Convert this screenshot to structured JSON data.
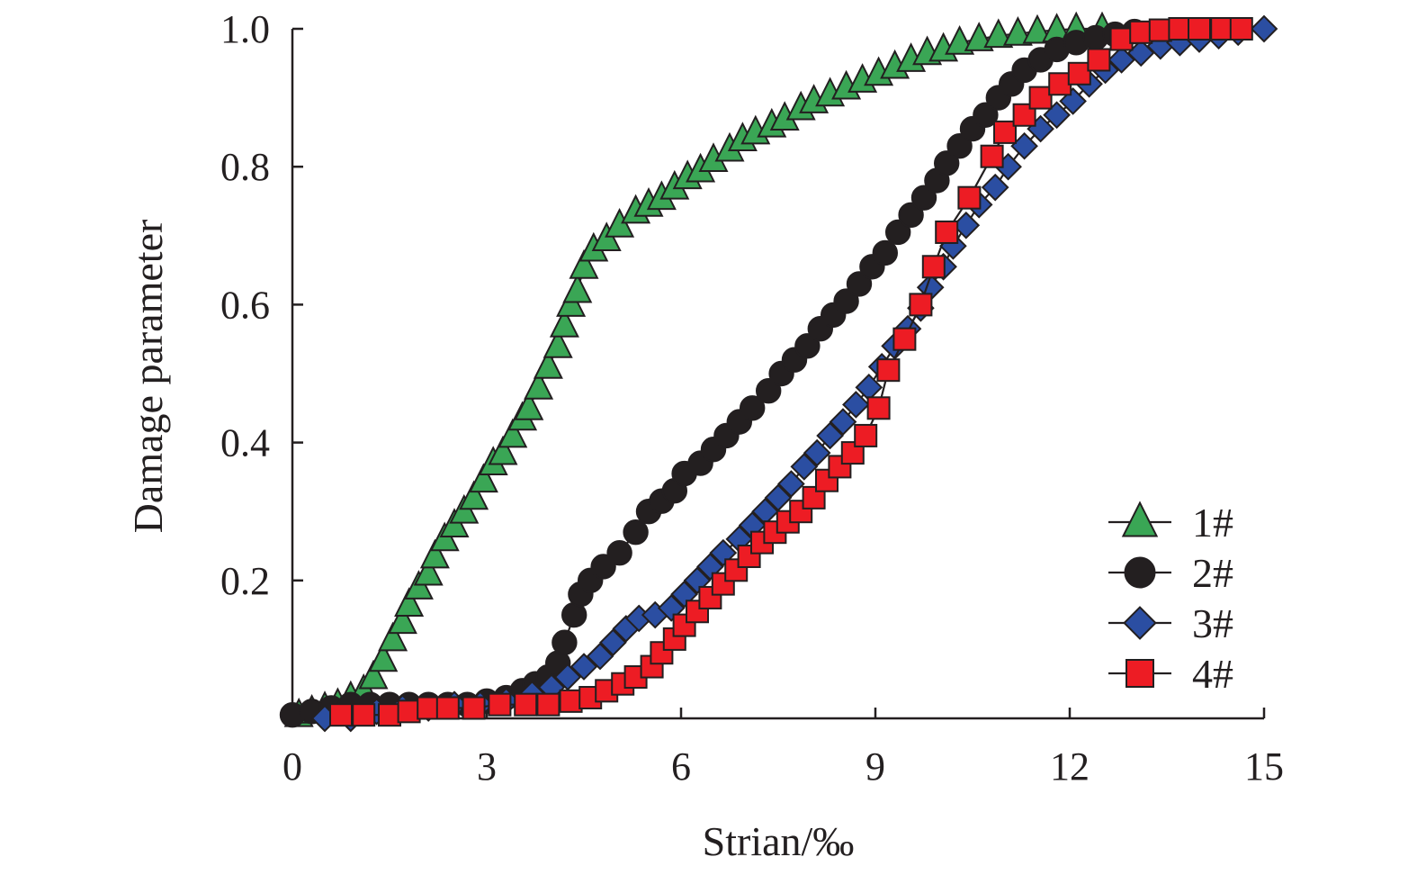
{
  "chart_data": {
    "type": "scatter",
    "title": "",
    "xlabel": "Strian/‰",
    "ylabel": "Damage parameter",
    "xlim": [
      0,
      15
    ],
    "ylim": [
      0,
      1.0
    ],
    "xticks": [
      0,
      3,
      6,
      9,
      12,
      15
    ],
    "xtick_labels": [
      "0",
      "3",
      "6",
      "9",
      "12",
      "15"
    ],
    "yticks": [
      0.2,
      0.4,
      0.6,
      0.8,
      1.0
    ],
    "ytick_labels": [
      "0.2",
      "0.4",
      "0.6",
      "0.8",
      "1.0"
    ],
    "grid": false,
    "legend_position": "bottom-right",
    "series": [
      {
        "name": "1#",
        "marker": "triangle",
        "color": "#3aa655",
        "points": [
          [
            0.1,
            0.005
          ],
          [
            0.3,
            0.01
          ],
          [
            0.5,
            0.015
          ],
          [
            0.7,
            0.02
          ],
          [
            0.9,
            0.03
          ],
          [
            1.1,
            0.04
          ],
          [
            1.25,
            0.06
          ],
          [
            1.4,
            0.085
          ],
          [
            1.55,
            0.115
          ],
          [
            1.7,
            0.14
          ],
          [
            1.8,
            0.165
          ],
          [
            1.95,
            0.19
          ],
          [
            2.1,
            0.21
          ],
          [
            2.2,
            0.235
          ],
          [
            2.35,
            0.26
          ],
          [
            2.5,
            0.28
          ],
          [
            2.65,
            0.3
          ],
          [
            2.8,
            0.32
          ],
          [
            2.95,
            0.345
          ],
          [
            3.1,
            0.37
          ],
          [
            3.25,
            0.385
          ],
          [
            3.4,
            0.41
          ],
          [
            3.55,
            0.435
          ],
          [
            3.65,
            0.45
          ],
          [
            3.8,
            0.48
          ],
          [
            3.95,
            0.51
          ],
          [
            4.1,
            0.54
          ],
          [
            4.2,
            0.57
          ],
          [
            4.3,
            0.6
          ],
          [
            4.4,
            0.62
          ],
          [
            4.5,
            0.655
          ],
          [
            4.65,
            0.68
          ],
          [
            4.85,
            0.695
          ],
          [
            5.05,
            0.715
          ],
          [
            5.3,
            0.735
          ],
          [
            5.5,
            0.745
          ],
          [
            5.7,
            0.755
          ],
          [
            5.9,
            0.77
          ],
          [
            6.1,
            0.785
          ],
          [
            6.3,
            0.795
          ],
          [
            6.5,
            0.81
          ],
          [
            6.75,
            0.825
          ],
          [
            6.95,
            0.84
          ],
          [
            7.15,
            0.85
          ],
          [
            7.4,
            0.86
          ],
          [
            7.6,
            0.87
          ],
          [
            7.85,
            0.885
          ],
          [
            8.05,
            0.895
          ],
          [
            8.3,
            0.905
          ],
          [
            8.55,
            0.915
          ],
          [
            8.8,
            0.925
          ],
          [
            9.05,
            0.935
          ],
          [
            9.3,
            0.945
          ],
          [
            9.55,
            0.955
          ],
          [
            9.8,
            0.965
          ],
          [
            10.05,
            0.97
          ],
          [
            10.3,
            0.98
          ],
          [
            10.6,
            0.985
          ],
          [
            10.9,
            0.99
          ],
          [
            11.2,
            0.993
          ],
          [
            11.5,
            0.996
          ],
          [
            11.8,
            0.998
          ],
          [
            12.1,
            1.0
          ],
          [
            12.5,
            1.0
          ]
        ]
      },
      {
        "name": "2#",
        "marker": "circle",
        "color": "#231f20",
        "points": [
          [
            0.0,
            0.005
          ],
          [
            0.3,
            0.01
          ],
          [
            0.6,
            0.015
          ],
          [
            0.9,
            0.02
          ],
          [
            1.2,
            0.02
          ],
          [
            1.5,
            0.02
          ],
          [
            1.8,
            0.02
          ],
          [
            2.1,
            0.02
          ],
          [
            2.4,
            0.02
          ],
          [
            2.7,
            0.02
          ],
          [
            3.0,
            0.025
          ],
          [
            3.3,
            0.03
          ],
          [
            3.55,
            0.04
          ],
          [
            3.75,
            0.05
          ],
          [
            3.95,
            0.06
          ],
          [
            4.1,
            0.08
          ],
          [
            4.2,
            0.11
          ],
          [
            4.35,
            0.15
          ],
          [
            4.45,
            0.18
          ],
          [
            4.6,
            0.2
          ],
          [
            4.8,
            0.22
          ],
          [
            5.05,
            0.24
          ],
          [
            5.3,
            0.27
          ],
          [
            5.5,
            0.3
          ],
          [
            5.7,
            0.315
          ],
          [
            5.9,
            0.33
          ],
          [
            6.05,
            0.355
          ],
          [
            6.3,
            0.37
          ],
          [
            6.5,
            0.39
          ],
          [
            6.7,
            0.41
          ],
          [
            6.9,
            0.43
          ],
          [
            7.1,
            0.45
          ],
          [
            7.35,
            0.475
          ],
          [
            7.55,
            0.5
          ],
          [
            7.75,
            0.52
          ],
          [
            7.95,
            0.54
          ],
          [
            8.15,
            0.565
          ],
          [
            8.35,
            0.585
          ],
          [
            8.55,
            0.605
          ],
          [
            8.75,
            0.63
          ],
          [
            8.95,
            0.655
          ],
          [
            9.15,
            0.675
          ],
          [
            9.35,
            0.705
          ],
          [
            9.55,
            0.73
          ],
          [
            9.75,
            0.755
          ],
          [
            9.95,
            0.78
          ],
          [
            10.1,
            0.805
          ],
          [
            10.3,
            0.83
          ],
          [
            10.5,
            0.855
          ],
          [
            10.7,
            0.875
          ],
          [
            10.9,
            0.9
          ],
          [
            11.1,
            0.92
          ],
          [
            11.3,
            0.94
          ],
          [
            11.55,
            0.955
          ],
          [
            11.8,
            0.97
          ],
          [
            12.1,
            0.98
          ],
          [
            12.4,
            0.987
          ],
          [
            12.7,
            0.992
          ],
          [
            13.0,
            0.996
          ]
        ]
      },
      {
        "name": "3#",
        "marker": "diamond",
        "color": "#2b4ea2",
        "points": [
          [
            0.5,
            0.0
          ],
          [
            0.9,
            0.0
          ],
          [
            1.3,
            0.01
          ],
          [
            1.7,
            0.015
          ],
          [
            2.1,
            0.015
          ],
          [
            2.5,
            0.02
          ],
          [
            2.9,
            0.02
          ],
          [
            3.3,
            0.025
          ],
          [
            3.7,
            0.035
          ],
          [
            4.0,
            0.045
          ],
          [
            4.25,
            0.06
          ],
          [
            4.5,
            0.075
          ],
          [
            4.75,
            0.09
          ],
          [
            4.95,
            0.11
          ],
          [
            5.15,
            0.13
          ],
          [
            5.35,
            0.145
          ],
          [
            5.6,
            0.15
          ],
          [
            5.85,
            0.16
          ],
          [
            6.05,
            0.18
          ],
          [
            6.25,
            0.2
          ],
          [
            6.45,
            0.22
          ],
          [
            6.65,
            0.24
          ],
          [
            6.9,
            0.26
          ],
          [
            7.1,
            0.28
          ],
          [
            7.3,
            0.3
          ],
          [
            7.5,
            0.32
          ],
          [
            7.7,
            0.34
          ],
          [
            7.9,
            0.365
          ],
          [
            8.1,
            0.385
          ],
          [
            8.3,
            0.41
          ],
          [
            8.5,
            0.43
          ],
          [
            8.7,
            0.455
          ],
          [
            8.9,
            0.48
          ],
          [
            9.1,
            0.51
          ],
          [
            9.3,
            0.54
          ],
          [
            9.5,
            0.565
          ],
          [
            9.7,
            0.595
          ],
          [
            9.85,
            0.625
          ],
          [
            10.05,
            0.655
          ],
          [
            10.2,
            0.685
          ],
          [
            10.4,
            0.715
          ],
          [
            10.6,
            0.745
          ],
          [
            10.85,
            0.77
          ],
          [
            11.05,
            0.8
          ],
          [
            11.3,
            0.83
          ],
          [
            11.55,
            0.855
          ],
          [
            11.8,
            0.875
          ],
          [
            12.05,
            0.895
          ],
          [
            12.3,
            0.92
          ],
          [
            12.55,
            0.94
          ],
          [
            12.8,
            0.955
          ],
          [
            13.1,
            0.965
          ],
          [
            13.4,
            0.975
          ],
          [
            13.7,
            0.98
          ],
          [
            14.0,
            0.985
          ],
          [
            14.3,
            0.99
          ],
          [
            14.6,
            0.995
          ],
          [
            15.0,
            1.0
          ]
        ]
      },
      {
        "name": "4#",
        "marker": "square",
        "color": "#ed1c24",
        "points": [
          [
            0.75,
            0.005
          ],
          [
            1.1,
            0.005
          ],
          [
            1.5,
            0.005
          ],
          [
            1.8,
            0.01
          ],
          [
            2.1,
            0.015
          ],
          [
            2.4,
            0.015
          ],
          [
            2.8,
            0.015
          ],
          [
            3.2,
            0.02
          ],
          [
            3.6,
            0.02
          ],
          [
            3.95,
            0.02
          ],
          [
            4.3,
            0.025
          ],
          [
            4.6,
            0.03
          ],
          [
            4.85,
            0.04
          ],
          [
            5.1,
            0.05
          ],
          [
            5.3,
            0.06
          ],
          [
            5.55,
            0.075
          ],
          [
            5.7,
            0.095
          ],
          [
            5.9,
            0.115
          ],
          [
            6.05,
            0.135
          ],
          [
            6.25,
            0.155
          ],
          [
            6.45,
            0.175
          ],
          [
            6.65,
            0.195
          ],
          [
            6.85,
            0.215
          ],
          [
            7.05,
            0.235
          ],
          [
            7.25,
            0.255
          ],
          [
            7.45,
            0.27
          ],
          [
            7.65,
            0.285
          ],
          [
            7.85,
            0.3
          ],
          [
            8.05,
            0.32
          ],
          [
            8.25,
            0.345
          ],
          [
            8.45,
            0.365
          ],
          [
            8.65,
            0.385
          ],
          [
            8.85,
            0.41
          ],
          [
            9.05,
            0.45
          ],
          [
            9.2,
            0.505
          ],
          [
            9.45,
            0.55
          ],
          [
            9.7,
            0.6
          ],
          [
            9.9,
            0.655
          ],
          [
            10.1,
            0.705
          ],
          [
            10.45,
            0.755
          ],
          [
            10.8,
            0.815
          ],
          [
            11.0,
            0.85
          ],
          [
            11.3,
            0.875
          ],
          [
            11.55,
            0.9
          ],
          [
            11.85,
            0.92
          ],
          [
            12.15,
            0.935
          ],
          [
            12.45,
            0.955
          ],
          [
            12.8,
            0.985
          ],
          [
            13.1,
            0.995
          ],
          [
            13.4,
            0.998
          ],
          [
            13.7,
            1.0
          ],
          [
            14.0,
            1.0
          ],
          [
            14.35,
            1.0
          ],
          [
            14.65,
            1.0
          ]
        ]
      }
    ]
  }
}
